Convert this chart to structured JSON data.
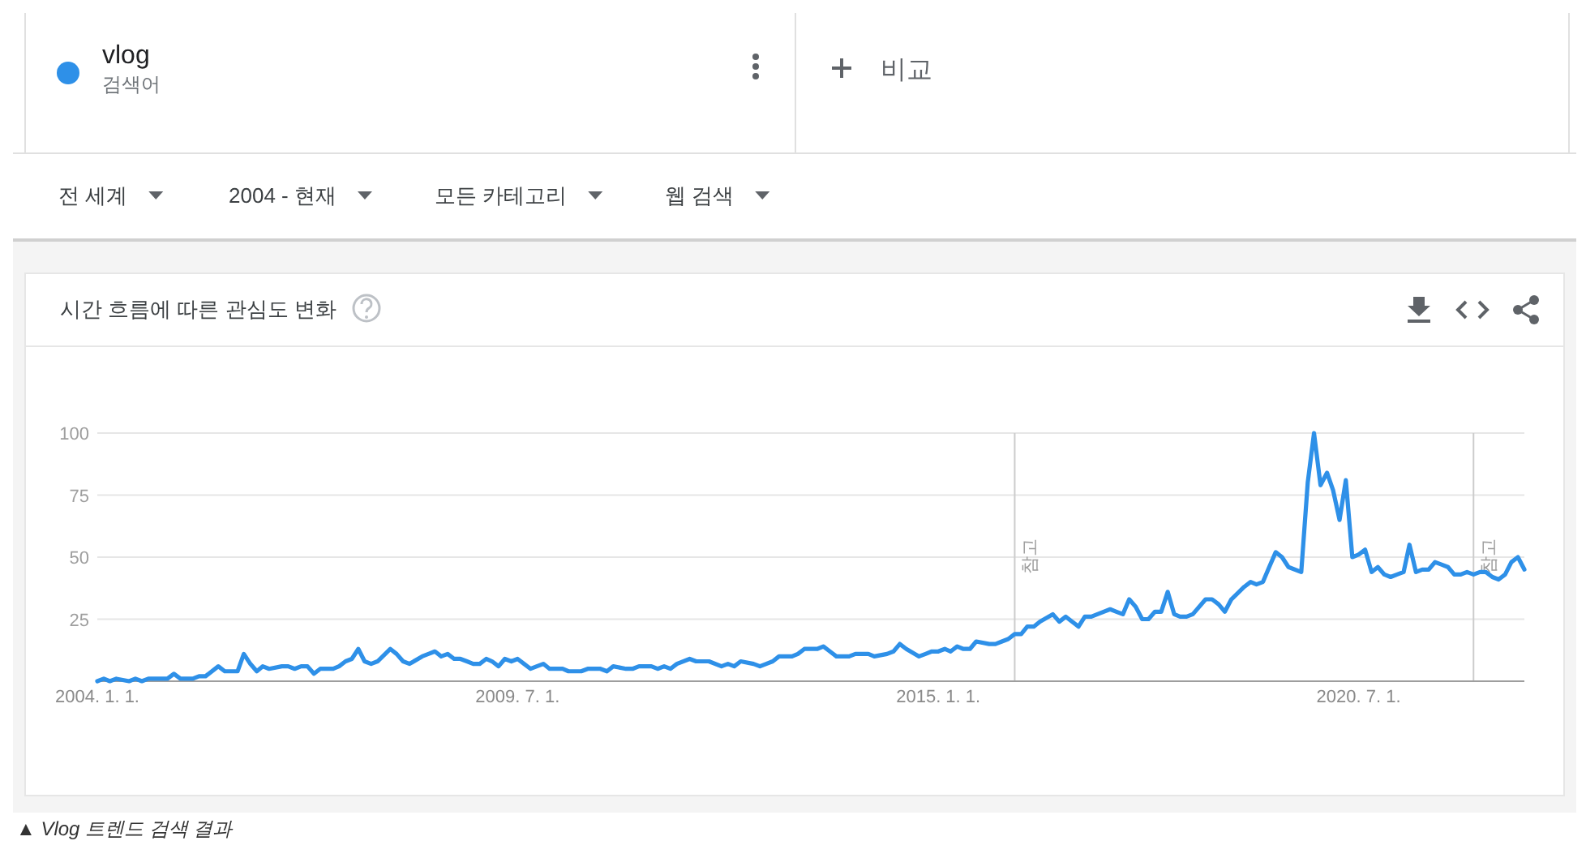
{
  "chart_data": {
    "type": "line",
    "title": "시간 흐름에 따른 관심도 변화",
    "x": [
      "2004-01",
      "2004-02",
      "2004-03",
      "2004-04",
      "2004-06",
      "2004-07",
      "2004-08",
      "2004-09",
      "2004-12",
      "2005-01",
      "2005-02",
      "2005-04",
      "2005-05",
      "2005-06",
      "2005-08",
      "2005-09",
      "2005-11",
      "2005-12",
      "2006-01",
      "2006-02",
      "2006-03",
      "2006-04",
      "2006-06",
      "2006-07",
      "2006-08",
      "2006-09",
      "2006-10",
      "2006-11",
      "2006-12",
      "2007-02",
      "2007-03",
      "2007-04",
      "2007-05",
      "2007-06",
      "2007-07",
      "2007-08",
      "2007-09",
      "2007-11",
      "2007-12",
      "2008-01",
      "2008-02",
      "2008-04",
      "2008-05",
      "2008-06",
      "2008-07",
      "2008-08",
      "2008-09",
      "2008-10",
      "2008-11",
      "2008-12",
      "2009-01",
      "2009-02",
      "2009-03",
      "2009-04",
      "2009-05",
      "2009-06",
      "2009-07",
      "2009-08",
      "2009-09",
      "2009-10",
      "2009-11",
      "2009-12",
      "2010-02",
      "2010-03",
      "2010-05",
      "2010-06",
      "2010-08",
      "2010-09",
      "2010-10",
      "2010-12",
      "2011-01",
      "2011-02",
      "2011-04",
      "2011-05",
      "2011-06",
      "2011-07",
      "2011-08",
      "2011-10",
      "2011-11",
      "2012-01",
      "2012-03",
      "2012-04",
      "2012-05",
      "2012-06",
      "2012-08",
      "2012-09",
      "2012-10",
      "2012-11",
      "2012-12",
      "2013-02",
      "2013-03",
      "2013-04",
      "2013-06",
      "2013-07",
      "2013-08",
      "2013-09",
      "2013-11",
      "2013-12",
      "2014-02",
      "2014-03",
      "2014-05",
      "2014-06",
      "2014-07",
      "2014-08",
      "2014-10",
      "2014-11",
      "2014-12",
      "2015-01",
      "2015-02",
      "2015-03",
      "2015-04",
      "2015-05",
      "2015-06",
      "2015-07",
      "2015-09",
      "2015-10",
      "2015-11",
      "2015-12",
      "2016-01",
      "2016-02",
      "2016-03",
      "2016-04",
      "2016-05",
      "2016-07",
      "2016-08",
      "2016-09",
      "2016-10",
      "2016-11",
      "2016-12",
      "2017-01",
      "2017-03",
      "2017-04",
      "2017-05",
      "2017-06",
      "2017-07",
      "2017-08",
      "2017-09",
      "2017-10",
      "2017-11",
      "2017-12",
      "2018-01",
      "2018-02",
      "2018-03",
      "2018-04",
      "2018-05",
      "2018-07",
      "2018-08",
      "2018-09",
      "2018-10",
      "2018-11",
      "2019-01",
      "2019-02",
      "2019-03",
      "2019-04",
      "2019-05",
      "2019-06",
      "2019-07",
      "2019-08",
      "2019-10",
      "2019-11",
      "2019-12",
      "2020-01",
      "2020-02",
      "2020-03",
      "2020-04",
      "2020-05",
      "2020-06",
      "2020-07",
      "2020-08",
      "2020-09",
      "2020-10",
      "2020-11",
      "2020-12",
      "2021-01",
      "2021-02",
      "2021-03",
      "2021-04",
      "2021-05",
      "2021-06",
      "2021-07",
      "2021-08",
      "2021-09",
      "2021-10",
      "2021-11",
      "2021-12",
      "2022-01",
      "2022-02",
      "2022-03",
      "2022-04",
      "2022-05",
      "2022-06",
      "2022-07",
      "2022-08",
      "2022-09"
    ],
    "series": [
      {
        "name": "vlog",
        "color": "#2e90e8",
        "values": [
          0,
          1,
          0,
          1,
          0,
          1,
          0,
          1,
          1,
          3,
          1,
          1,
          2,
          2,
          6,
          4,
          4,
          11,
          7,
          4,
          6,
          5,
          6,
          6,
          5,
          6,
          6,
          3,
          5,
          5,
          6,
          8,
          9,
          13,
          8,
          7,
          8,
          13,
          11,
          8,
          7,
          10,
          11,
          12,
          10,
          11,
          9,
          9,
          8,
          7,
          7,
          9,
          8,
          6,
          9,
          8,
          9,
          7,
          5,
          6,
          7,
          5,
          5,
          4,
          4,
          5,
          5,
          4,
          6,
          5,
          5,
          6,
          6,
          5,
          6,
          5,
          7,
          9,
          8,
          8,
          6,
          7,
          6,
          8,
          7,
          6,
          7,
          8,
          10,
          10,
          11,
          13,
          13,
          14,
          12,
          10,
          10,
          11,
          11,
          10,
          11,
          12,
          15,
          13,
          10,
          11,
          12,
          12,
          13,
          12,
          14,
          13,
          13,
          16,
          15,
          15,
          16,
          17,
          19,
          19,
          22,
          22,
          24,
          27,
          24,
          26,
          24,
          22,
          26,
          26,
          28,
          29,
          28,
          27,
          33,
          30,
          25,
          25,
          28,
          28,
          36,
          27,
          26,
          26,
          27,
          33,
          33,
          31,
          28,
          33,
          38,
          40,
          39,
          40,
          46,
          52,
          50,
          46,
          44,
          80,
          100,
          79,
          84,
          77,
          65,
          81,
          50,
          51,
          53,
          44,
          46,
          43,
          42,
          43,
          44,
          55,
          44,
          45,
          45,
          48,
          47,
          46,
          43,
          43,
          44,
          43,
          44,
          44,
          42,
          41,
          43,
          48,
          50,
          45
        ]
      }
    ],
    "xlim": [
      "2004-01",
      "2022-09"
    ],
    "ylim": [
      0,
      100
    ],
    "yticks": [
      25,
      50,
      75,
      100
    ],
    "xticks": [
      {
        "value": "2004-01-01",
        "label": "2004. 1. 1."
      },
      {
        "value": "2009-07-01",
        "label": "2009. 7. 1."
      },
      {
        "value": "2015-01-01",
        "label": "2015. 1. 1."
      },
      {
        "value": "2020-07-01",
        "label": "2020. 7. 1."
      }
    ],
    "grid": "y",
    "legend": "top left",
    "ref_lines": [
      {
        "axis": "x",
        "value": "2016-01-01",
        "label": "참고",
        "color": "#cccccc"
      },
      {
        "axis": "x",
        "value": "2022-01-01",
        "label": "참고",
        "color": "#cccccc"
      }
    ],
    "annotations": [
      "검색어",
      "비교",
      "전 세계",
      "2004 - 현재",
      "모든 카테고리",
      "웹 검색",
      "▲ Vlog 트렌드 검색 결과"
    ]
  }
}
